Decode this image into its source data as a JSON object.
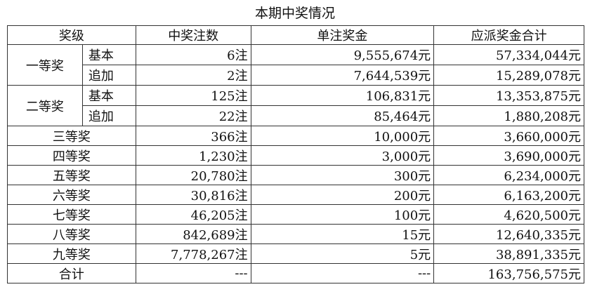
{
  "title": "本期中奖情况",
  "headers": [
    "奖级",
    "中奖注数",
    "单注奖金",
    "应派奖金合计"
  ],
  "tiers": [
    {
      "name": "一等奖",
      "rows": [
        {
          "sub": "基本",
          "count": "6注",
          "prize": "9,555,674元",
          "total": "57,334,044元"
        },
        {
          "sub": "追加",
          "count": "2注",
          "prize": "7,644,539元",
          "total": "15,289,078元"
        }
      ]
    },
    {
      "name": "二等奖",
      "rows": [
        {
          "sub": "基本",
          "count": "125注",
          "prize": "106,831元",
          "total": "13,353,875元"
        },
        {
          "sub": "追加",
          "count": "22注",
          "prize": "85,464元",
          "total": "1,880,208元"
        }
      ]
    }
  ],
  "rows": [
    {
      "name": "三等奖",
      "count": "366注",
      "prize": "10,000元",
      "total": "3,660,000元"
    },
    {
      "name": "四等奖",
      "count": "1,230注",
      "prize": "3,000元",
      "total": "3,690,000元"
    },
    {
      "name": "五等奖",
      "count": "20,780注",
      "prize": "300元",
      "total": "6,234,000元"
    },
    {
      "name": "六等奖",
      "count": "30,816注",
      "prize": "200元",
      "total": "6,163,200元"
    },
    {
      "name": "七等奖",
      "count": "46,205注",
      "prize": "100元",
      "total": "4,620,500元"
    },
    {
      "name": "八等奖",
      "count": "842,689注",
      "prize": "15元",
      "total": "12,640,335元"
    },
    {
      "name": "九等奖",
      "count": "7,778,267注",
      "prize": "5元",
      "total": "38,891,335元"
    },
    {
      "name": "合计",
      "count": "---",
      "prize": "---",
      "total": "163,756,575元"
    }
  ]
}
